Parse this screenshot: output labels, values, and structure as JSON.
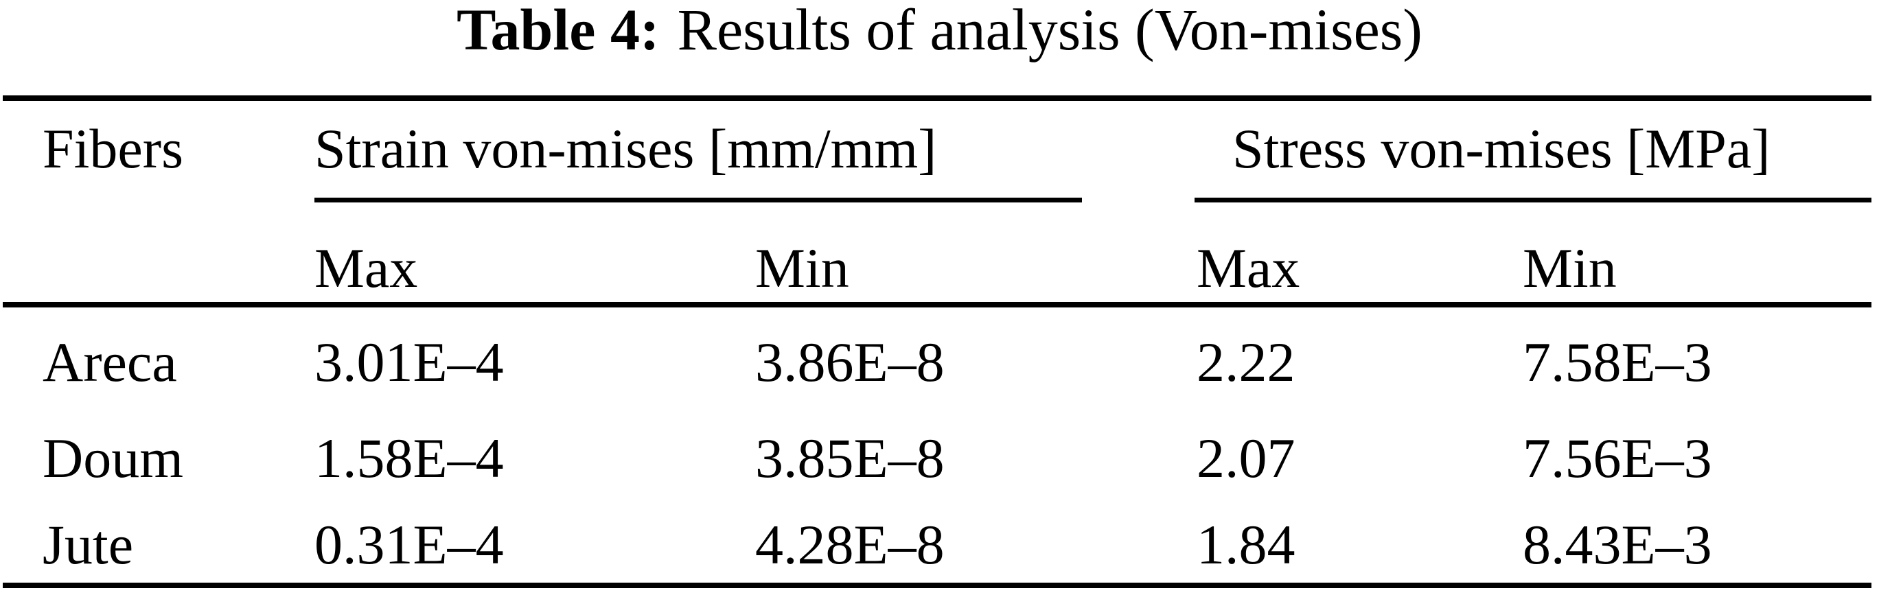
{
  "colors": {
    "background": "#ffffff",
    "text": "#000000",
    "rule": "#000000"
  },
  "caption": {
    "number": "Table 4:",
    "text": "Results of analysis (Von-mises)"
  },
  "table": {
    "fibers_header": "Fibers",
    "group_headers": {
      "strain": "Strain von-mises [mm/mm]",
      "stress": "Stress von-mises [MPa]"
    },
    "sub_headers": {
      "strain_max": "Max",
      "strain_min": "Min",
      "stress_max": "Max",
      "stress_min": "Min"
    },
    "rows": [
      {
        "fiber": "Areca",
        "strain_max": "3.01E–4",
        "strain_min": "3.86E–8",
        "stress_max": "2.22",
        "stress_min": "7.58E–3"
      },
      {
        "fiber": "Doum",
        "strain_max": "1.58E–4",
        "strain_min": "3.85E–8",
        "stress_max": "2.07",
        "stress_min": "7.56E–3"
      },
      {
        "fiber": "Jute",
        "strain_max": "0.31E–4",
        "strain_min": "4.28E–8",
        "stress_max": "1.84",
        "stress_min": "8.43E–3"
      }
    ]
  }
}
